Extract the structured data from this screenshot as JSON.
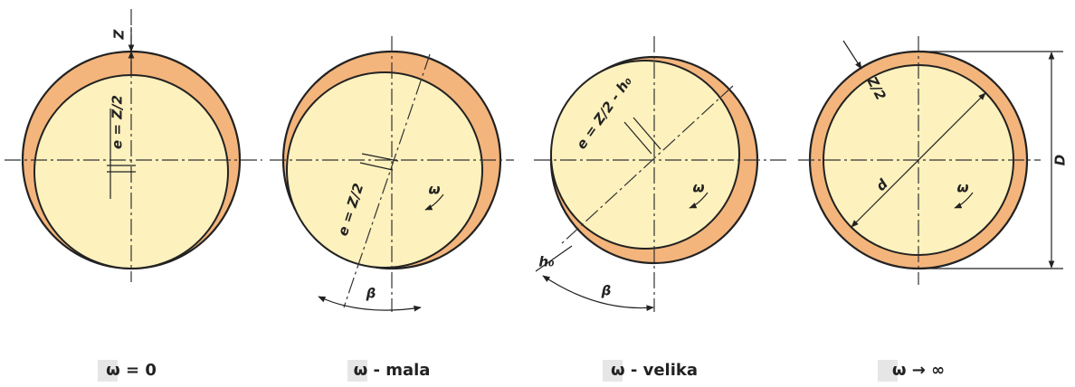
{
  "diagrams": [
    {
      "caption": "ω = 0",
      "labels": [
        "Z",
        "e = Z/2"
      ]
    },
    {
      "caption": "ω - mala",
      "labels": [
        "e = Z/2",
        "β",
        "ω"
      ]
    },
    {
      "caption": "ω - velika",
      "labels": [
        "e = Z/2 - h₀",
        "h₀",
        "β",
        "ω"
      ]
    },
    {
      "caption": "ω → ∞",
      "labels": [
        "Z/2",
        "d",
        "ω",
        "D"
      ]
    }
  ]
}
